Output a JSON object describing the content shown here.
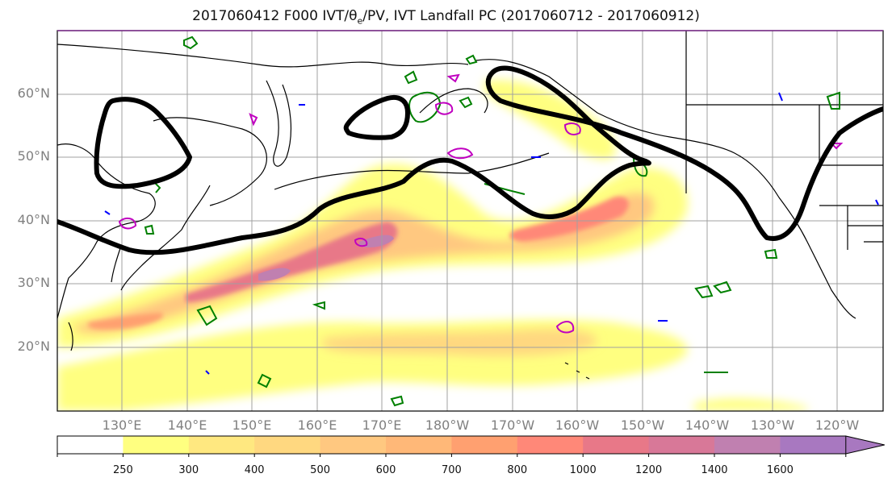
{
  "title": {
    "prefix": "2017060412 F000 IVT/θ",
    "sub": "e",
    "suffix": "/PV, IVT Landfall PC (2017060712 - 2017060912)"
  },
  "map": {
    "lat_labels": [
      "60°N",
      "50°N",
      "40°N",
      "30°N",
      "20°N"
    ],
    "lat_values": [
      60,
      50,
      40,
      30,
      20
    ],
    "lon_labels": [
      "130°E",
      "140°E",
      "150°E",
      "160°E",
      "170°E",
      "180°W",
      "170°W",
      "160°W",
      "150°W",
      "140°W",
      "130°W",
      "120°W"
    ],
    "lon_values": [
      130,
      140,
      150,
      160,
      170,
      180,
      190,
      200,
      210,
      220,
      230,
      240
    ],
    "extent": {
      "lon_min": 120,
      "lon_max": 247,
      "lat_min": 10,
      "lat_max": 70
    },
    "colors": {
      "ivt_contour": "#000000",
      "pv_green": "#008000",
      "pv_magenta": "#c000c0",
      "pv_blue": "#0000ff",
      "coast": "#000000",
      "grid": "#a0a0a0"
    }
  },
  "colorbar": {
    "levels": [
      "250",
      "300",
      "400",
      "500",
      "600",
      "700",
      "800",
      "1000",
      "1200",
      "1400",
      "1600"
    ],
    "colors": [
      "#ffffff",
      "#ffff80",
      "#ffe880",
      "#ffd880",
      "#ffc880",
      "#ffb878",
      "#ffa070",
      "#ff8878",
      "#e87888",
      "#d87898",
      "#c080b0",
      "#a878c0"
    ]
  }
}
